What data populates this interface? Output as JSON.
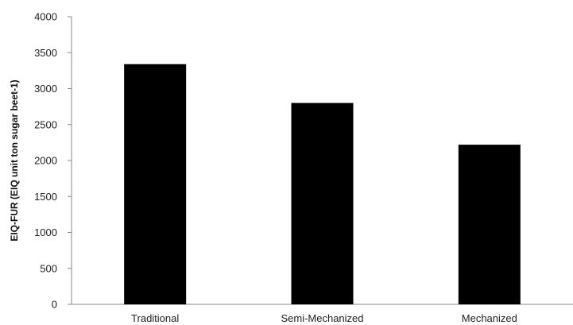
{
  "chart_data": {
    "type": "bar",
    "categories": [
      "Traditional",
      "Semi-Mechanized",
      "Mechanized"
    ],
    "values": [
      3340,
      2800,
      2220
    ],
    "title": "",
    "xlabel": "",
    "ylabel": "EIQ-FUR  (EIQ unit ton sugar beet-1)",
    "ylim": [
      0,
      4000
    ],
    "yticks": [
      0,
      500,
      1000,
      1500,
      2000,
      2500,
      3000,
      3500,
      4000
    ],
    "bar_color": "#000000",
    "grid": false,
    "legend": "none"
  }
}
